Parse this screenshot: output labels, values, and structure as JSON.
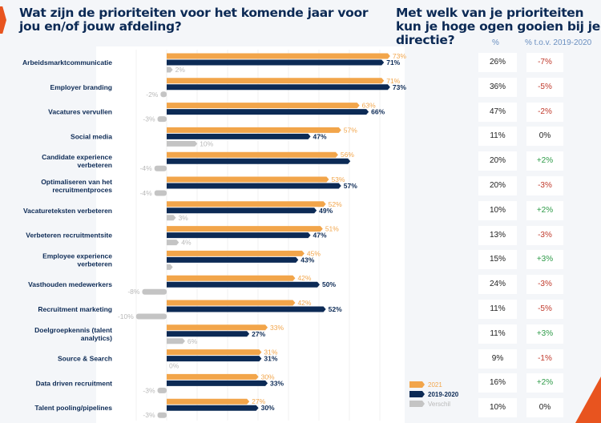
{
  "left_title": "Wat zijn de prioriteiten voor het komende jaar voor jou en/of jouw afdeling?",
  "right_title": "Met welk van je prioriteiten kun je hoge ogen gooien bij je directie?",
  "table_headers": {
    "pct": "%",
    "change": "% t.o.v. 2019-2020"
  },
  "colors": {
    "2021": "#f2a54a",
    "2019-2020": "#0c2a55",
    "Verschil": "#c4c4c4",
    "negative": "#c0392b",
    "positive": "#2e9b48"
  },
  "chart_data": {
    "type": "bar",
    "orientation": "horizontal",
    "categories": [
      "Arbeidsmarktcommunicatie",
      "Employer branding",
      "Vacatures vervullen",
      "Social media",
      "Candidate experience verbeteren",
      "Optimaliseren van het recruitmentproces",
      "Vacatureteksten verbeteren",
      "Verbeteren recruitmentsite",
      "Employee experience verbeteren",
      "Vasthouden medewerkers",
      "Recruitment marketing",
      "Doelgroepkennis (talent analytics)",
      "Source & Search",
      "Data driven recruitment",
      "Talent pooling/pipelines"
    ],
    "series": [
      {
        "name": "2021",
        "values": [
          73,
          71,
          63,
          57,
          56,
          53,
          52,
          51,
          45,
          42,
          42,
          33,
          31,
          30,
          27
        ]
      },
      {
        "name": "2019-2020",
        "values": [
          71,
          73,
          66,
          47,
          60,
          57,
          49,
          47,
          43,
          50,
          52,
          27,
          31,
          33,
          30
        ]
      },
      {
        "name": "Verschil",
        "values": [
          2,
          -2,
          -3,
          10,
          -4,
          -4,
          3,
          4,
          2,
          -8,
          -10,
          6,
          0,
          -3,
          -3
        ]
      }
    ],
    "hidden_labels": {
      "2019-2020": [
        4
      ],
      "Verschil": [
        8
      ]
    },
    "unit": "%",
    "legend": [
      "2021",
      "2019-2020",
      "Verschil"
    ],
    "legend_placement": "bottom-right"
  },
  "table": [
    {
      "pct": "26%",
      "change": "-7%"
    },
    {
      "pct": "36%",
      "change": "-5%"
    },
    {
      "pct": "47%",
      "change": "-2%"
    },
    {
      "pct": "11%",
      "change": "0%"
    },
    {
      "pct": "20%",
      "change": "+2%"
    },
    {
      "pct": "20%",
      "change": "-3%"
    },
    {
      "pct": "10%",
      "change": "+2%"
    },
    {
      "pct": "13%",
      "change": "-3%"
    },
    {
      "pct": "15%",
      "change": "+3%"
    },
    {
      "pct": "24%",
      "change": "-3%"
    },
    {
      "pct": "11%",
      "change": "-5%"
    },
    {
      "pct": "11%",
      "change": "+3%"
    },
    {
      "pct": "9%",
      "change": "-1%"
    },
    {
      "pct": "16%",
      "change": "+2%"
    },
    {
      "pct": "10%",
      "change": "0%"
    }
  ]
}
